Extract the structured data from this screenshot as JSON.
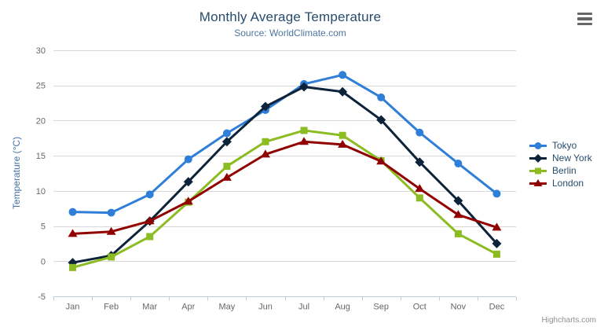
{
  "header": {
    "title": "Monthly Average Temperature",
    "subtitle": "Source: WorldClimate.com"
  },
  "credits": "Highcharts.com",
  "export_menu_icon": "hamburger-menu-icon",
  "chart_data": {
    "type": "line",
    "title": "Monthly Average Temperature",
    "subtitle": "Source: WorldClimate.com",
    "categories": [
      "Jan",
      "Feb",
      "Mar",
      "Apr",
      "May",
      "Jun",
      "Jul",
      "Aug",
      "Sep",
      "Oct",
      "Nov",
      "Dec"
    ],
    "series": [
      {
        "name": "Tokyo",
        "color": "#2f7ed8",
        "marker": "circle",
        "values": [
          7.0,
          6.9,
          9.5,
          14.5,
          18.2,
          21.5,
          25.2,
          26.5,
          23.3,
          18.3,
          13.9,
          9.6
        ]
      },
      {
        "name": "New York",
        "color": "#0d233a",
        "marker": "diamond",
        "values": [
          -0.2,
          0.8,
          5.7,
          11.3,
          17.0,
          22.0,
          24.8,
          24.1,
          20.1,
          14.1,
          8.6,
          2.5
        ]
      },
      {
        "name": "Berlin",
        "color": "#8bbc21",
        "marker": "square",
        "values": [
          -0.9,
          0.6,
          3.5,
          8.4,
          13.5,
          17.0,
          18.6,
          17.9,
          14.3,
          9.0,
          3.9,
          1.0
        ]
      },
      {
        "name": "London",
        "color": "#910000",
        "marker": "triangle",
        "values": [
          3.9,
          4.2,
          5.7,
          8.5,
          11.9,
          15.2,
          17.0,
          16.6,
          14.2,
          10.3,
          6.6,
          4.8
        ]
      }
    ],
    "xlabel": "",
    "ylabel": "Temperature (°C)",
    "ylim": [
      -5,
      30
    ],
    "yticks": [
      -5,
      0,
      5,
      10,
      15,
      20,
      25,
      30
    ],
    "grid": "horizontal",
    "legend_position": "right",
    "colors": {
      "grid_line": "#d8d8d8",
      "axis_line": "#c0d0e0",
      "tick_label": "#666666",
      "title": "#274b6d",
      "subtitle": "#4d759e",
      "axis_title": "#4572a7",
      "legend_text": "#274b6d",
      "credits": "#909090"
    }
  }
}
